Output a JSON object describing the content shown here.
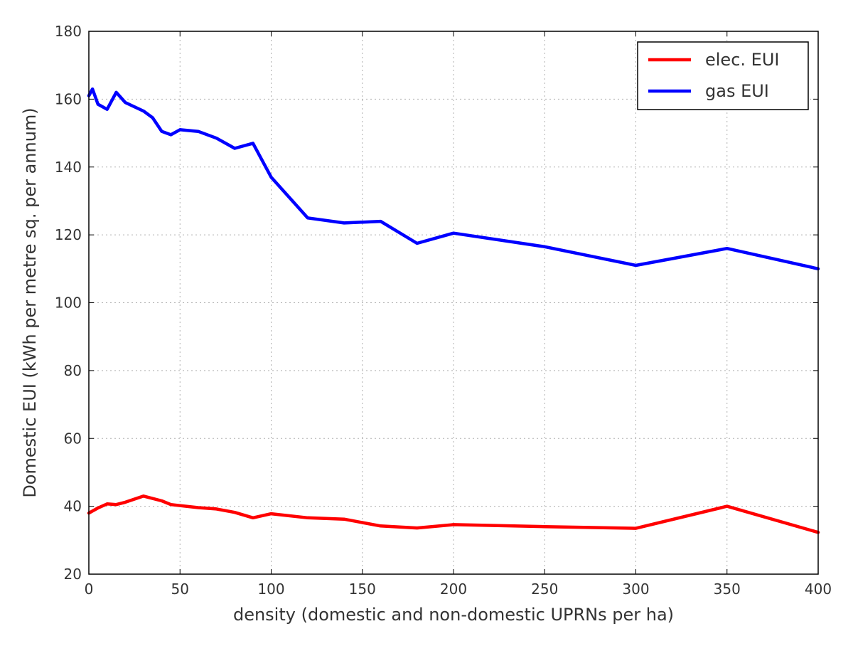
{
  "chart_data": {
    "type": "line",
    "xlabel": "density (domestic and non-domestic UPRNs per ha)",
    "ylabel": "Domestic EUI (kWh per metre sq. per annum)",
    "xlim": [
      0,
      400
    ],
    "ylim": [
      20,
      180
    ],
    "xticks": [
      0,
      50,
      100,
      150,
      200,
      250,
      300,
      350,
      400
    ],
    "yticks": [
      20,
      40,
      60,
      80,
      100,
      120,
      140,
      160,
      180
    ],
    "grid": true,
    "legend_position": "top-right",
    "series": [
      {
        "name": "elec. EUI",
        "color": "#ff0000",
        "x": [
          0,
          5,
          10,
          15,
          20,
          30,
          40,
          45,
          50,
          60,
          70,
          80,
          90,
          100,
          120,
          140,
          160,
          180,
          200,
          250,
          300,
          350,
          400
        ],
        "y": [
          38,
          39.5,
          40.7,
          40.5,
          41.2,
          43,
          41.6,
          40.5,
          40.2,
          39.6,
          39.2,
          38.2,
          36.6,
          37.8,
          36.6,
          36.2,
          34.2,
          33.6,
          34.6,
          34,
          33.5,
          40,
          32.3
        ]
      },
      {
        "name": "gas EUI",
        "color": "#0000ff",
        "x": [
          0,
          2,
          5,
          10,
          15,
          20,
          30,
          35,
          40,
          45,
          50,
          60,
          70,
          80,
          90,
          100,
          120,
          140,
          160,
          180,
          200,
          250,
          300,
          350,
          400
        ],
        "y": [
          161,
          163,
          158.5,
          157,
          162,
          159,
          156.5,
          154.5,
          150.5,
          149.5,
          151,
          150.5,
          148.5,
          145.5,
          147,
          137,
          125,
          123.5,
          124,
          117.5,
          120.5,
          116.5,
          111,
          116,
          110
        ]
      }
    ]
  }
}
